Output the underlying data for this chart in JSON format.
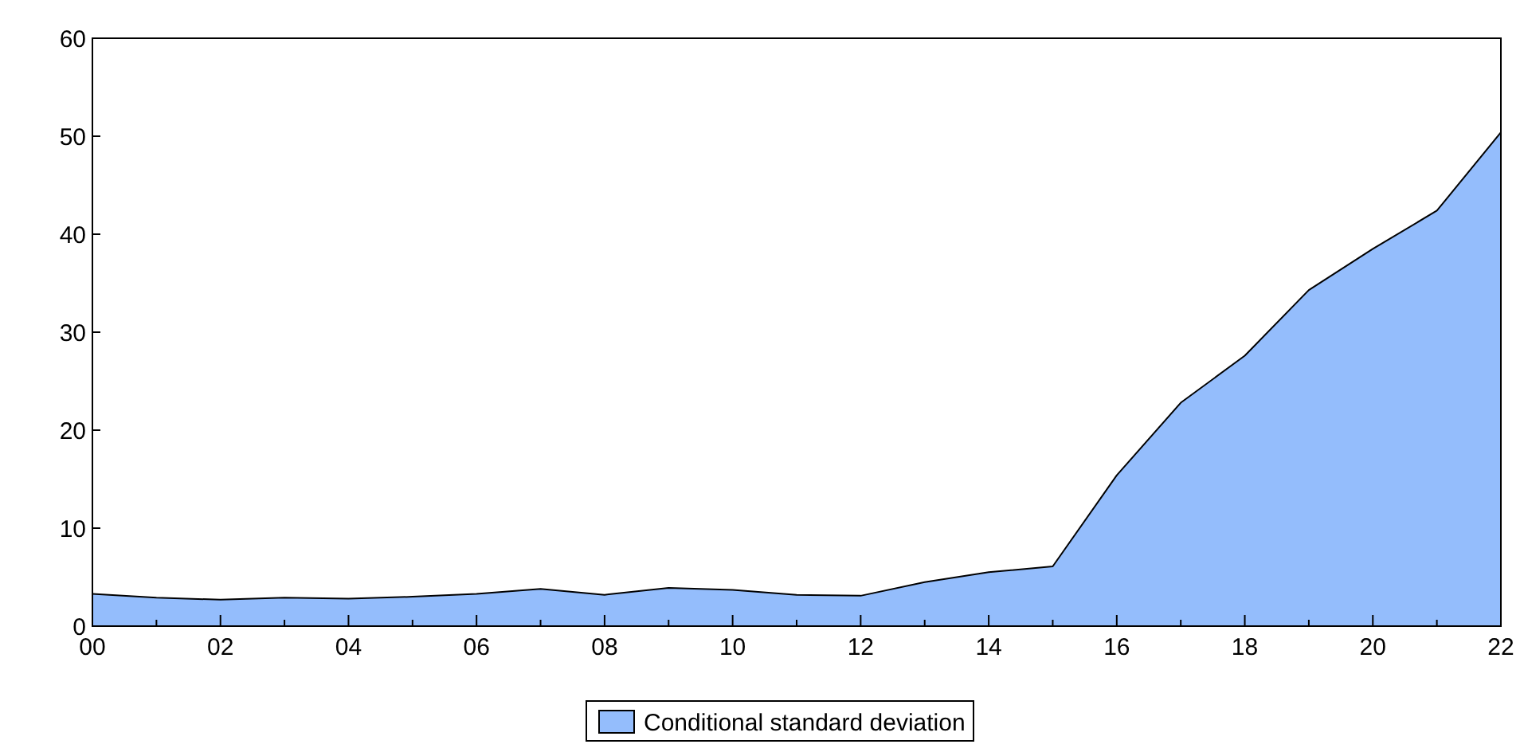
{
  "chart_data": {
    "type": "area",
    "x": [
      2000,
      2001,
      2002,
      2003,
      2004,
      2005,
      2006,
      2007,
      2008,
      2009,
      2010,
      2011,
      2012,
      2013,
      2014,
      2015,
      2016,
      2017,
      2018,
      2019,
      2020,
      2021,
      2022
    ],
    "series": [
      {
        "name": "Conditional standard deviation",
        "color": "#94bdfc",
        "values": [
          3.3,
          2.9,
          2.7,
          2.9,
          2.8,
          3.0,
          3.3,
          3.8,
          3.2,
          3.9,
          3.7,
          3.2,
          3.1,
          4.5,
          5.5,
          6.1,
          15.4,
          22.8,
          27.6,
          34.3,
          38.5,
          42.4,
          50.4
        ]
      }
    ],
    "xlim": [
      2000,
      2022
    ],
    "xticks": [
      {
        "value": 2000,
        "label": "00"
      },
      {
        "value": 2001,
        "label": null
      },
      {
        "value": 2002,
        "label": "02"
      },
      {
        "value": 2003,
        "label": null
      },
      {
        "value": 2004,
        "label": "04"
      },
      {
        "value": 2005,
        "label": null
      },
      {
        "value": 2006,
        "label": "06"
      },
      {
        "value": 2007,
        "label": null
      },
      {
        "value": 2008,
        "label": "08"
      },
      {
        "value": 2009,
        "label": null
      },
      {
        "value": 2010,
        "label": "10"
      },
      {
        "value": 2011,
        "label": null
      },
      {
        "value": 2012,
        "label": "12"
      },
      {
        "value": 2013,
        "label": null
      },
      {
        "value": 2014,
        "label": "14"
      },
      {
        "value": 2015,
        "label": null
      },
      {
        "value": 2016,
        "label": "16"
      },
      {
        "value": 2017,
        "label": null
      },
      {
        "value": 2018,
        "label": "18"
      },
      {
        "value": 2019,
        "label": null
      },
      {
        "value": 2020,
        "label": "20"
      },
      {
        "value": 2021,
        "label": null
      },
      {
        "value": 2022,
        "label": "22"
      }
    ],
    "ylim": [
      0,
      60
    ],
    "yticks": [
      0,
      10,
      20,
      30,
      40,
      50,
      60
    ],
    "grid": false,
    "legend": "bottom"
  }
}
